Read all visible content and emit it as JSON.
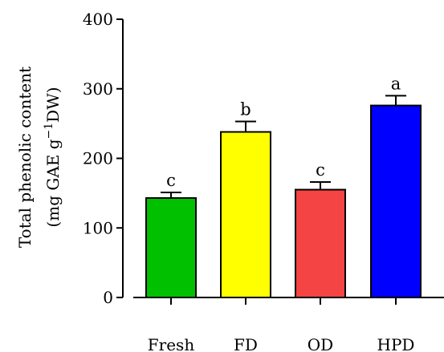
{
  "chart_data": {
    "type": "bar",
    "categories": [
      "Fresh",
      "FD",
      "OD",
      "HPD"
    ],
    "values": [
      143,
      238,
      155,
      276
    ],
    "errors": [
      8,
      15,
      11,
      14
    ],
    "significance": [
      "c",
      "b",
      "c",
      "a"
    ],
    "colors": [
      "#00c000",
      "#ffff00",
      "#f44444",
      "#0000ff"
    ],
    "ylabel_line1": "Total phenolic content",
    "ylabel_line2": "(mg GAE g",
    "ylabel_sup": "−1",
    "ylabel_line2_end": "DW)",
    "xlabel": "",
    "title": "",
    "ylim": [
      0,
      400
    ],
    "yticks": [
      0,
      100,
      200,
      300,
      400
    ],
    "grid": false
  }
}
